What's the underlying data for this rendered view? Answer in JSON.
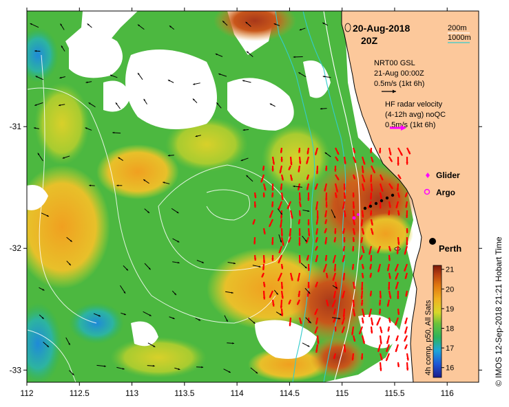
{
  "title": {
    "date": "20-Aug-2018",
    "time": "20Z"
  },
  "depth_legend": {
    "contour_200": "200m",
    "contour_1000": "1000m",
    "color_200": "#ffffff",
    "color_1000": "#33cccc"
  },
  "wind_legend": {
    "line1": "NRT00 GSL",
    "line2": "21-Aug 00:00Z",
    "line3": "0.5m/s (1kt 6h)",
    "arrow_color": "#000000"
  },
  "radar_legend": {
    "line1": "HF radar velocity",
    "line2": "(4-12h avg) noQC",
    "line3": "0.5m/s (1kt 6h)",
    "arrow_color": "#ff00ff"
  },
  "markers": {
    "glider_label": "Glider",
    "argo_label": "Argo",
    "city_label": "Perth",
    "glider_color": "#ff00ff",
    "argo_color": "#ff00ff"
  },
  "colorbar": {
    "title": "4h comp, p50, All Sats",
    "ticks": [
      "21",
      "20",
      "19",
      "18",
      "17",
      "16"
    ],
    "min": 15.5,
    "max": 21.2
  },
  "axes": {
    "x_ticks": [
      "112",
      "112.5",
      "113",
      "113.5",
      "114",
      "114.5",
      "115",
      "115.5",
      "116"
    ],
    "y_ticks": [
      "-31",
      "-32",
      "-33"
    ],
    "x_range": [
      112,
      116.3
    ],
    "y_range": [
      -33.1,
      -30.05
    ]
  },
  "credit": "© IMOS 12-Sep-2018 21:21 Hobart Time",
  "colors": {
    "land": "#fcc89b",
    "cloud": "#ffffff",
    "radar_arrow": "#ff0000",
    "wind_arrow": "#000000"
  }
}
